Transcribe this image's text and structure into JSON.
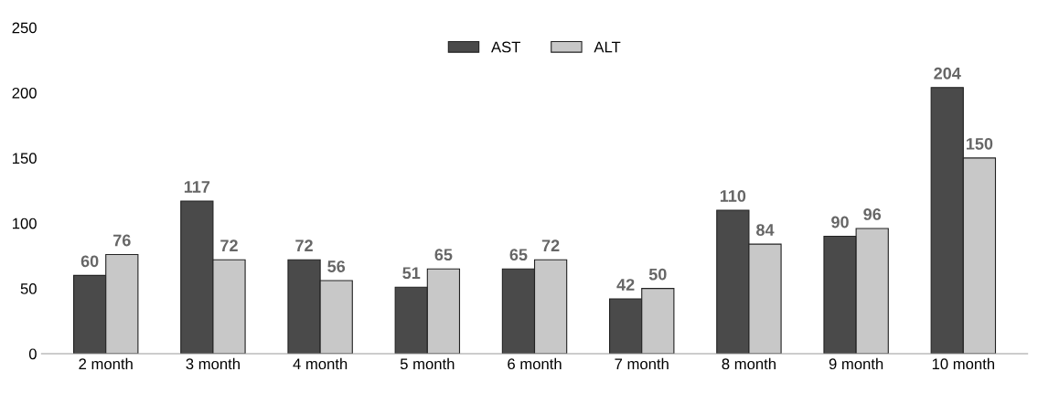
{
  "chart_data": {
    "type": "bar",
    "categories": [
      "2 month",
      "3 month",
      "4 month",
      "5 month",
      "6 month",
      "7 month",
      "8 month",
      "9 month",
      "10 month"
    ],
    "series": [
      {
        "name": "AST",
        "color": "#4a4a4a",
        "values": [
          60,
          117,
          72,
          51,
          65,
          42,
          110,
          90,
          204
        ]
      },
      {
        "name": "ALT",
        "color": "#c8c8c8",
        "values": [
          76,
          72,
          56,
          65,
          72,
          50,
          84,
          96,
          150
        ]
      }
    ],
    "ylim": [
      0,
      250
    ],
    "yticks": [
      0,
      50,
      100,
      150,
      200,
      250
    ],
    "grid": false,
    "legend": "top",
    "data_labels": true
  }
}
